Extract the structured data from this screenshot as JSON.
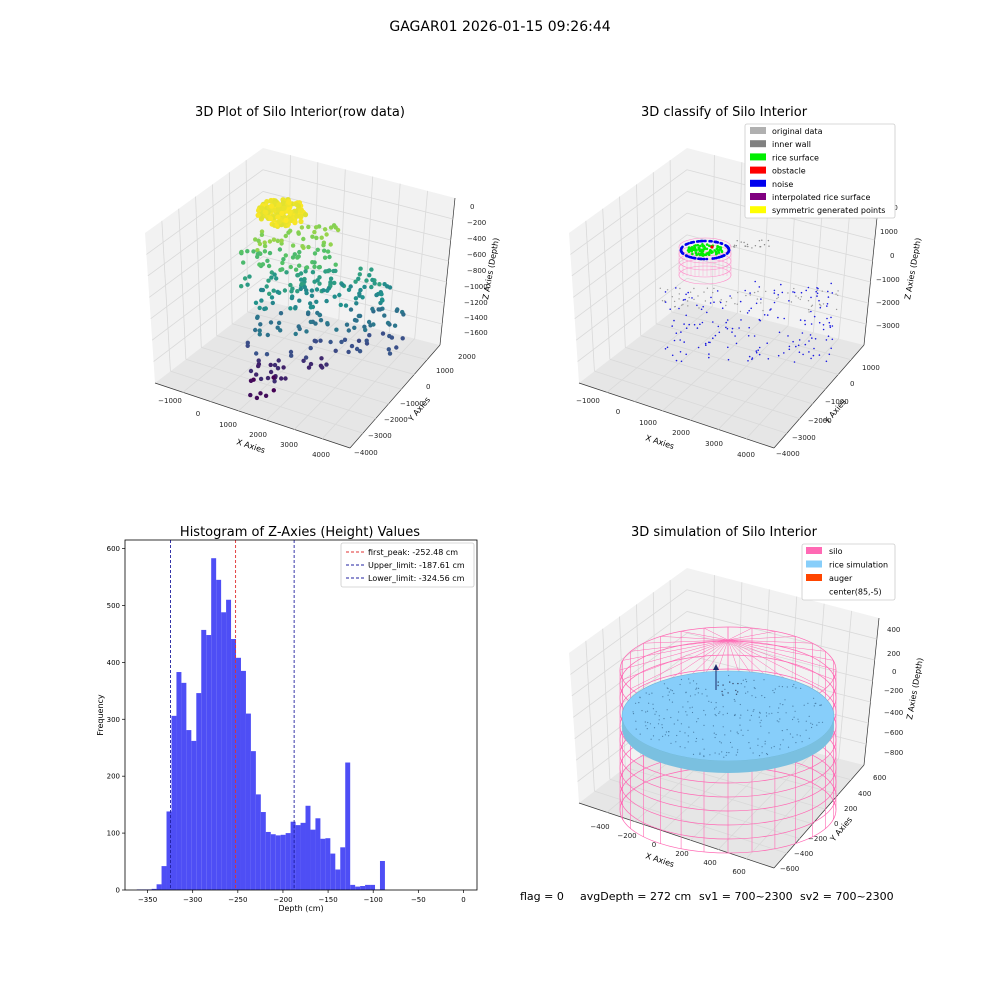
{
  "suptitle": "GAGAR01 2026-01-15 09:26:44",
  "footer": {
    "flag": "flag = 0",
    "avg_depth": "avgDepth = 272 cm",
    "sv1": "sv1 = 700~2300",
    "sv2": "sv2 = 700~2300"
  },
  "colors": {
    "hist_bar": "#4a4af5",
    "first_peak": "#e03030",
    "limit": "#2020a0",
    "viridis": [
      "#440154",
      "#3b528b",
      "#21918c",
      "#5ec962",
      "#fde725"
    ],
    "silo": "#ff69b4",
    "rice_sim": "#87cefa",
    "auger": "#ff4500"
  },
  "chart_data": [
    {
      "id": "raw",
      "type": "scatter",
      "title": "3D Plot of Silo Interior(row data)",
      "xlabel": "X Axies",
      "ylabel": "Y Axies",
      "zlabel": "Z Axies (Depth)",
      "xticks": [
        "−1000",
        "0",
        "1000",
        "2000",
        "3000",
        "4000"
      ],
      "yticks": [
        "2000",
        "1000",
        "0",
        "−1000",
        "−2000",
        "−3000",
        "−4000"
      ],
      "zticks": [
        "0",
        "−200",
        "−400",
        "−600",
        "−800",
        "−1000",
        "−1200",
        "−1400",
        "−1600"
      ],
      "xlim": [
        -1400,
        4500
      ],
      "ylim": [
        -4200,
        2400
      ],
      "zlim": [
        -1800,
        100
      ],
      "grid": true
    },
    {
      "id": "classify",
      "type": "scatter",
      "title": "3D classify of Silo Interior",
      "xlabel": "X Axies",
      "ylabel": "Y Axies",
      "zlabel": "Z Axies (Depth)",
      "xticks": [
        "−1000",
        "0",
        "1000",
        "2000",
        "3000",
        "4000"
      ],
      "yticks": [
        "1000",
        "0",
        "−1000",
        "−2000",
        "−3000",
        "−4000"
      ],
      "zticks": [
        "2000",
        "1000",
        "0",
        "−1000",
        "−2000",
        "−3000"
      ],
      "xlim": [
        -1400,
        4500
      ],
      "ylim": [
        -4200,
        2000
      ],
      "zlim": [
        -3600,
        2500
      ],
      "grid": true,
      "legend_position": "top-right",
      "legend": [
        {
          "label": "original data",
          "color": "#b0b0b0"
        },
        {
          "label": "inner wall",
          "color": "#808080"
        },
        {
          "label": "rice surface",
          "color": "#00ee00"
        },
        {
          "label": "obstacle",
          "color": "#ff0000"
        },
        {
          "label": "noise",
          "color": "#0000ee"
        },
        {
          "label": "interpolated rice surface",
          "color": "#800080"
        },
        {
          "label": "symmetric generated points",
          "color": "#ffff00"
        }
      ]
    },
    {
      "id": "histogram",
      "type": "bar",
      "title": "Histogram of Z-Axies (Height) Values",
      "xlabel": "Depth (cm)",
      "ylabel": "Frequency",
      "xlim": [
        -375,
        15
      ],
      "ylim": [
        0,
        615
      ],
      "xticks": [
        "−350",
        "−300",
        "−250",
        "−200",
        "−150",
        "−100",
        "−50",
        "0"
      ],
      "xtick_values": [
        -350,
        -300,
        -250,
        -200,
        -150,
        -100,
        -50,
        0
      ],
      "yticks": [
        "0",
        "100",
        "200",
        "300",
        "400",
        "500",
        "600"
      ],
      "ytick_values": [
        0,
        100,
        200,
        300,
        400,
        500,
        600
      ],
      "bin_start": -362,
      "bin_width": 5.5,
      "values": [
        1,
        1,
        1,
        2,
        10,
        42,
        138,
        306,
        383,
        364,
        281,
        262,
        346,
        457,
        448,
        583,
        545,
        488,
        510,
        441,
        408,
        385,
        310,
        244,
        168,
        137,
        102,
        98,
        96,
        97,
        100,
        120,
        114,
        118,
        148,
        106,
        126,
        90,
        91,
        64,
        36,
        75,
        224,
        9,
        6,
        7,
        9,
        9,
        1,
        51
      ],
      "vlines": [
        {
          "label": "first_peak: -252.48 cm",
          "x": -252.48,
          "color": "#e03030"
        },
        {
          "label": "Upper_limit: -187.61 cm",
          "x": -187.61,
          "color": "#2020a0"
        },
        {
          "label": "Lower_limit: -324.56 cm",
          "x": -324.56,
          "color": "#2020a0"
        }
      ],
      "legend_position": "top-right"
    },
    {
      "id": "simulation",
      "type": "scatter",
      "title": "3D simulation of Silo Interior",
      "xlabel": "X Axies",
      "ylabel": "Y Axies",
      "zlabel": "Z Axies (Depth)",
      "xticks": [
        "−400",
        "−200",
        "0",
        "200",
        "400",
        "600"
      ],
      "yticks": [
        "600",
        "400",
        "200",
        "0",
        "−200",
        "−400",
        "−600"
      ],
      "zticks": [
        "400",
        "200",
        "0",
        "−200",
        "−400",
        "−600",
        "−800"
      ],
      "xlim": [
        -550,
        750
      ],
      "ylim": [
        -700,
        700
      ],
      "zlim": [
        -900,
        500
      ],
      "grid": true,
      "legend_position": "top-right",
      "legend": [
        {
          "label": "silo",
          "color": "#ff69b4"
        },
        {
          "label": "rice simulation",
          "color": "#87cefa"
        },
        {
          "label": "auger",
          "color": "#ff4500"
        },
        {
          "label": "center(85,-5)",
          "color": ""
        }
      ]
    }
  ]
}
